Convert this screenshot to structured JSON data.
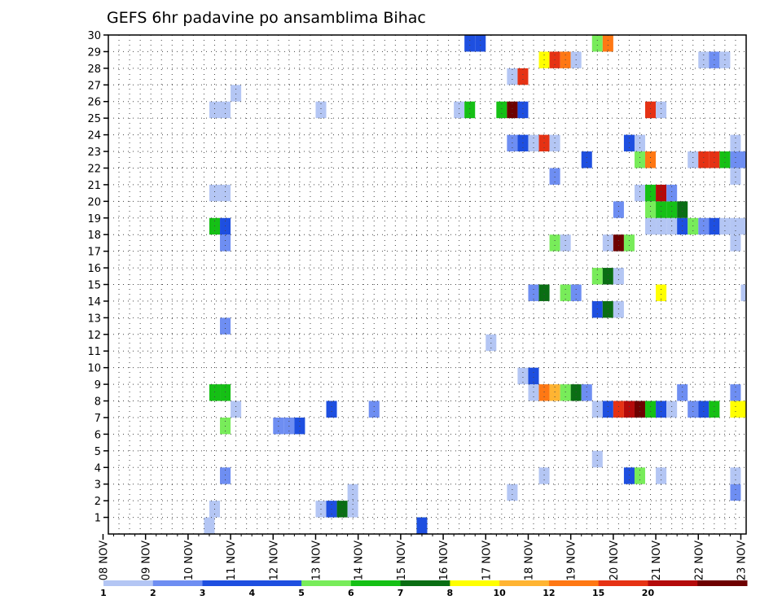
{
  "chart_data": {
    "type": "heatmap",
    "title": "GEFS 6hr padavine po ansamblima Bihac",
    "xlabel": "",
    "ylabel": "",
    "x_ticks": [
      "08 NOV",
      "09 NOV",
      "10 NOV",
      "11 NOV",
      "12 NOV",
      "13 NOV",
      "14 NOV",
      "15 NOV",
      "16 NOV",
      "17 NOV",
      "18 NOV",
      "19 NOV",
      "20 NOV",
      "21 NOV",
      "22 NOV",
      "23 NOV"
    ],
    "xlim": [
      0,
      60
    ],
    "y_ticks": [
      "1",
      "2",
      "3",
      "4",
      "5",
      "6",
      "7",
      "8",
      "9",
      "10",
      "11",
      "12",
      "13",
      "14",
      "15",
      "16",
      "17",
      "18",
      "19",
      "20",
      "21",
      "22",
      "23",
      "24",
      "25",
      "26",
      "27",
      "28",
      "29",
      "30"
    ],
    "ylim": [
      0,
      30
    ],
    "grid": true,
    "colorbar": {
      "position": "bottom",
      "tick_labels": [
        "1",
        "2",
        "3",
        "4",
        "5",
        "6",
        "7",
        "8",
        "10",
        "12",
        "15",
        "20"
      ],
      "colors": [
        "#b4c6f4",
        "#6e8ef2",
        "#1e4fe0",
        "#1e4fe0",
        "#78ec5a",
        "#15c015",
        "#0a6e14",
        "#ffff00",
        "#ffb432",
        "#ff7814",
        "#e63214",
        "#b40a0a",
        "#6e0000"
      ]
    },
    "cells": [
      [
        9.5,
        0,
        1
      ],
      [
        29.5,
        0,
        6
      ],
      [
        29.5,
        0,
        3
      ],
      [
        10,
        1,
        1
      ],
      [
        20,
        1,
        1
      ],
      [
        21,
        1,
        3
      ],
      [
        22,
        1,
        7
      ],
      [
        23,
        1,
        1
      ],
      [
        23,
        2,
        1
      ],
      [
        38,
        2,
        1
      ],
      [
        59,
        2,
        2
      ],
      [
        11,
        3,
        2
      ],
      [
        41,
        3,
        1
      ],
      [
        49,
        3,
        3
      ],
      [
        50,
        3,
        5
      ],
      [
        52,
        3,
        1
      ],
      [
        59,
        3,
        1
      ],
      [
        46,
        4,
        1
      ],
      [
        11,
        6,
        5
      ],
      [
        16,
        6,
        2
      ],
      [
        17,
        6,
        2
      ],
      [
        18,
        6,
        3
      ],
      [
        12,
        7,
        1
      ],
      [
        21,
        7,
        3
      ],
      [
        25,
        7,
        2
      ],
      [
        46,
        7,
        1
      ],
      [
        47,
        7,
        3
      ],
      [
        48,
        7,
        11
      ],
      [
        49,
        7,
        12
      ],
      [
        50,
        7,
        13
      ],
      [
        51,
        7,
        6
      ],
      [
        52,
        7,
        3
      ],
      [
        53,
        7,
        1
      ],
      [
        55,
        7,
        2
      ],
      [
        56,
        7,
        3
      ],
      [
        57,
        7,
        6
      ],
      [
        59,
        7,
        8
      ],
      [
        60,
        7,
        8
      ],
      [
        10,
        8,
        6
      ],
      [
        11,
        8,
        6
      ],
      [
        40,
        8,
        1
      ],
      [
        41,
        8,
        10
      ],
      [
        42,
        8,
        9
      ],
      [
        43,
        8,
        5
      ],
      [
        44,
        8,
        7
      ],
      [
        45,
        8,
        2
      ],
      [
        54,
        8,
        2
      ],
      [
        59,
        8,
        2
      ],
      [
        39,
        9,
        1
      ],
      [
        40,
        9,
        3
      ],
      [
        36,
        11,
        1
      ],
      [
        11,
        12,
        2
      ],
      [
        46,
        13,
        3
      ],
      [
        47,
        13,
        7
      ],
      [
        48,
        13,
        1
      ],
      [
        40,
        14,
        2
      ],
      [
        41,
        14,
        7
      ],
      [
        43,
        14,
        5
      ],
      [
        44,
        14,
        2
      ],
      [
        52,
        14,
        8
      ],
      [
        60,
        14,
        1
      ],
      [
        46,
        15,
        5
      ],
      [
        47,
        15,
        7
      ],
      [
        48,
        15,
        1
      ],
      [
        47,
        17,
        1
      ],
      [
        48,
        17,
        13
      ],
      [
        49,
        17,
        5
      ],
      [
        42,
        17,
        5
      ],
      [
        43,
        17,
        1
      ],
      [
        11,
        17,
        2
      ],
      [
        59,
        17,
        1
      ],
      [
        10,
        18,
        6
      ],
      [
        11,
        18,
        3
      ],
      [
        51,
        18,
        1
      ],
      [
        52,
        18,
        1
      ],
      [
        53,
        18,
        1
      ],
      [
        54,
        18,
        3
      ],
      [
        55,
        18,
        5
      ],
      [
        56,
        18,
        2
      ],
      [
        57,
        18,
        3
      ],
      [
        58,
        18,
        1
      ],
      [
        59,
        18,
        1
      ],
      [
        60,
        18,
        1
      ],
      [
        48,
        19,
        2
      ],
      [
        51,
        19,
        5
      ],
      [
        52,
        19,
        6
      ],
      [
        53,
        19,
        6
      ],
      [
        54,
        19,
        7
      ],
      [
        10,
        20,
        1
      ],
      [
        11,
        20,
        1
      ],
      [
        50,
        20,
        1
      ],
      [
        51,
        20,
        6
      ],
      [
        52,
        20,
        12
      ],
      [
        53,
        20,
        2
      ],
      [
        42,
        21,
        2
      ],
      [
        59,
        21,
        1
      ],
      [
        45,
        22,
        3
      ],
      [
        50,
        22,
        5
      ],
      [
        51,
        22,
        10
      ],
      [
        55,
        22,
        1
      ],
      [
        56,
        22,
        11
      ],
      [
        57,
        22,
        11
      ],
      [
        58,
        22,
        6
      ],
      [
        59,
        22,
        2
      ],
      [
        60,
        22,
        2
      ],
      [
        38,
        23,
        2
      ],
      [
        39,
        23,
        3
      ],
      [
        40,
        23,
        1
      ],
      [
        41,
        23,
        11
      ],
      [
        42,
        23,
        1
      ],
      [
        49,
        23,
        3
      ],
      [
        50,
        23,
        1
      ],
      [
        59,
        23,
        1
      ],
      [
        10,
        25,
        1
      ],
      [
        11,
        25,
        1
      ],
      [
        20,
        25,
        1
      ],
      [
        33,
        25,
        1
      ],
      [
        34,
        25,
        6
      ],
      [
        37,
        25,
        6
      ],
      [
        38,
        25,
        13
      ],
      [
        39,
        25,
        3
      ],
      [
        51,
        25,
        11
      ],
      [
        52,
        25,
        1
      ],
      [
        12,
        26,
        1
      ],
      [
        38,
        27,
        1
      ],
      [
        39,
        27,
        11
      ],
      [
        41,
        28,
        8
      ],
      [
        42,
        28,
        11
      ],
      [
        43,
        28,
        10
      ],
      [
        44,
        28,
        1
      ],
      [
        56,
        28,
        1
      ],
      [
        57,
        28,
        2
      ],
      [
        58,
        28,
        1
      ],
      [
        34,
        29,
        3
      ],
      [
        35,
        29,
        3
      ],
      [
        46,
        29,
        5
      ],
      [
        47,
        29,
        10
      ]
    ]
  }
}
